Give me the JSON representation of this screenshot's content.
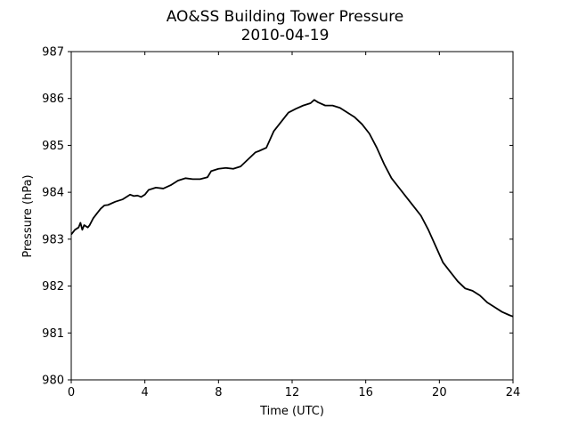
{
  "chart_data": {
    "type": "line",
    "title": "AO&SS Building Tower Pressure",
    "subtitle": "2010-04-19",
    "xlabel": "Time (UTC)",
    "ylabel": "Pressure (hPa)",
    "xlim": [
      0,
      24
    ],
    "ylim": [
      980,
      987
    ],
    "xticks": [
      0,
      4,
      8,
      12,
      16,
      20,
      24
    ],
    "yticks": [
      980,
      981,
      982,
      983,
      984,
      985,
      986,
      987
    ],
    "grid": false,
    "series": [
      {
        "color": "#000000",
        "x": [
          0,
          0.2,
          0.4,
          0.5,
          0.6,
          0.7,
          0.9,
          1.0,
          1.2,
          1.4,
          1.6,
          1.8,
          2.0,
          2.4,
          2.8,
          3.2,
          3.4,
          3.6,
          3.8,
          4.0,
          4.2,
          4.6,
          5.0,
          5.4,
          5.8,
          6.2,
          6.6,
          7.0,
          7.4,
          7.6,
          8.0,
          8.4,
          8.8,
          9.2,
          9.6,
          10.0,
          10.2,
          10.6,
          11.0,
          11.4,
          11.8,
          12.2,
          12.6,
          13.0,
          13.2,
          13.4,
          13.8,
          14.2,
          14.6,
          15.0,
          15.4,
          15.8,
          16.2,
          16.6,
          17.0,
          17.4,
          17.8,
          18.2,
          18.6,
          19.0,
          19.4,
          19.8,
          20.2,
          20.6,
          21.0,
          21.4,
          21.8,
          22.2,
          22.6,
          23.0,
          23.4,
          23.8,
          24.0
        ],
        "y": [
          983.1,
          983.2,
          983.25,
          983.35,
          983.2,
          983.3,
          983.25,
          983.3,
          983.45,
          983.55,
          983.65,
          983.72,
          983.73,
          983.8,
          983.85,
          983.95,
          983.92,
          983.93,
          983.9,
          983.95,
          984.05,
          984.1,
          984.08,
          984.15,
          984.25,
          984.3,
          984.28,
          984.28,
          984.32,
          984.45,
          984.5,
          984.52,
          984.5,
          984.55,
          984.7,
          984.85,
          984.88,
          984.95,
          985.3,
          985.5,
          985.7,
          985.78,
          985.85,
          985.9,
          985.97,
          985.92,
          985.85,
          985.85,
          985.8,
          985.7,
          985.6,
          985.45,
          985.25,
          984.95,
          984.6,
          984.3,
          984.1,
          983.9,
          983.7,
          983.5,
          983.2,
          982.85,
          982.5,
          982.3,
          982.1,
          981.95,
          981.9,
          981.8,
          981.65,
          981.55,
          981.45,
          981.38,
          981.35
        ]
      }
    ]
  }
}
